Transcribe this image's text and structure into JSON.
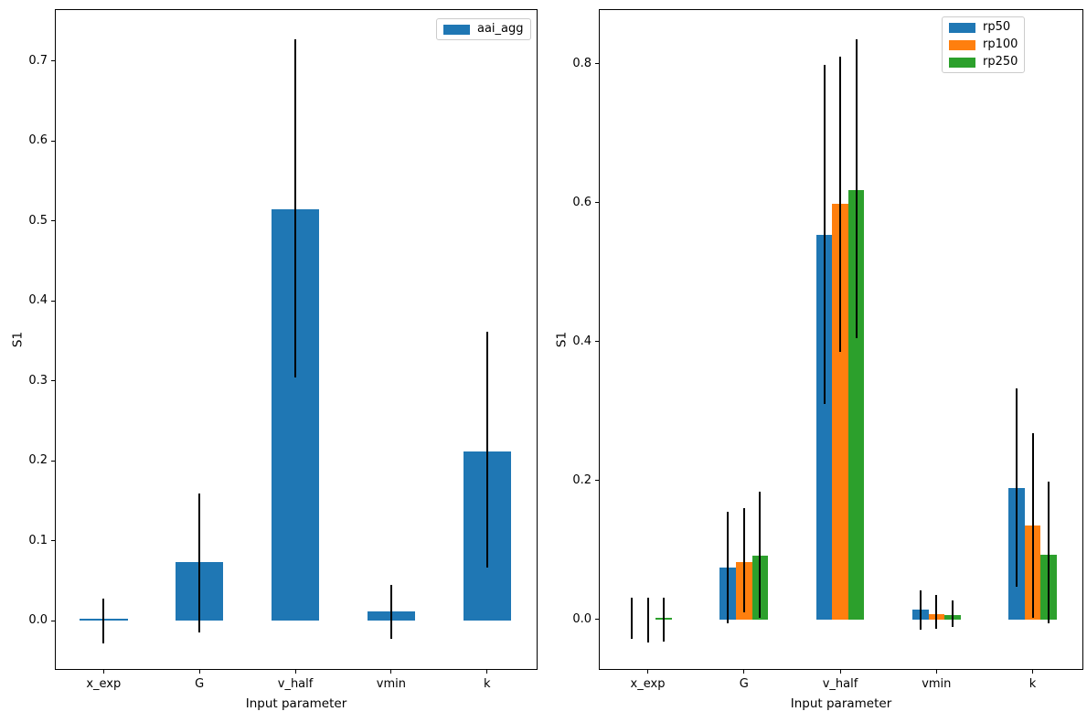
{
  "figure": {
    "background": "#ffffff"
  },
  "colors": {
    "blue": "#1f77b4",
    "orange": "#ff7f0e",
    "green": "#2ca02c",
    "errorbar": "#000000"
  },
  "chart_data": [
    {
      "type": "bar",
      "panel": "left",
      "title": "",
      "xlabel": "Input parameter",
      "ylabel": "S1",
      "categories": [
        "x_exp",
        "G",
        "v_half",
        "vmin",
        "k"
      ],
      "yticks": [
        0.0,
        0.1,
        0.2,
        0.3,
        0.4,
        0.5,
        0.6,
        0.7
      ],
      "yticklabels": [
        "0.0",
        "0.1",
        "0.2",
        "0.3",
        "0.4",
        "0.5",
        "0.6",
        "0.7"
      ],
      "ylim": [
        -0.0617,
        0.7648
      ],
      "grid": false,
      "legend_position": "upper right",
      "error_bar_color": "#000000",
      "series": [
        {
          "name": "aai_agg",
          "color": "#1f77b4",
          "values": [
            0.002,
            0.073,
            0.515,
            0.011,
            0.212
          ],
          "err_low": [
            -0.029,
            -0.015,
            0.304,
            -0.023,
            0.066
          ],
          "err_high": [
            0.027,
            0.159,
            0.727,
            0.045,
            0.361
          ]
        }
      ]
    },
    {
      "type": "bar",
      "panel": "right",
      "title": "",
      "xlabel": "Input parameter",
      "ylabel": "S1",
      "categories": [
        "x_exp",
        "G",
        "v_half",
        "vmin",
        "k"
      ],
      "yticks": [
        0.0,
        0.2,
        0.4,
        0.6,
        0.8
      ],
      "yticklabels": [
        "0.0",
        "0.2",
        "0.4",
        "0.6",
        "0.8"
      ],
      "ylim": [
        -0.0724,
        0.8789
      ],
      "grid": false,
      "legend_position": "upper right",
      "error_bar_color": "#000000",
      "series": [
        {
          "name": "rp50",
          "color": "#1f77b4",
          "values": [
            0.0,
            0.075,
            0.554,
            0.014,
            0.189
          ],
          "err_low": [
            -0.028,
            -0.005,
            0.311,
            -0.015,
            0.047
          ],
          "err_high": [
            0.031,
            0.155,
            0.799,
            0.042,
            0.333
          ]
        },
        {
          "name": "rp100",
          "color": "#ff7f0e",
          "values": [
            0.0,
            0.083,
            0.598,
            0.008,
            0.135
          ],
          "err_low": [
            -0.033,
            0.011,
            0.386,
            -0.013,
            0.002
          ],
          "err_high": [
            0.031,
            0.161,
            0.81,
            0.036,
            0.268
          ]
        },
        {
          "name": "rp250",
          "color": "#2ca02c",
          "values": [
            0.002,
            0.092,
            0.619,
            0.006,
            0.094
          ],
          "err_low": [
            -0.031,
            0.002,
            0.405,
            -0.011,
            -0.005
          ],
          "err_high": [
            0.031,
            0.184,
            0.835,
            0.028,
            0.198
          ]
        }
      ]
    }
  ]
}
